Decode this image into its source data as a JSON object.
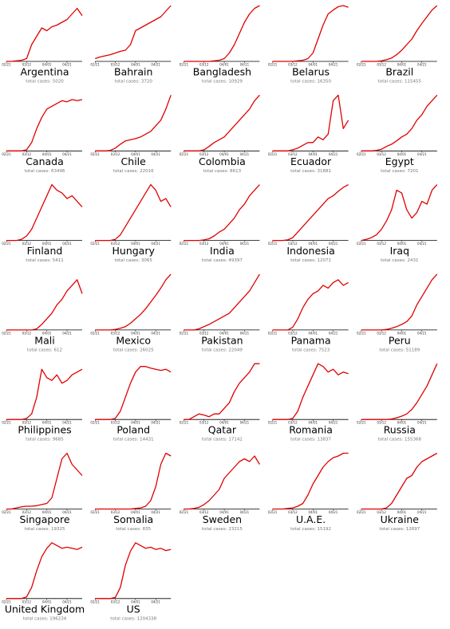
{
  "chart_data": {
    "type": "line",
    "color": "#e00000",
    "x": [
      0,
      5,
      10,
      15,
      20,
      25,
      30,
      35,
      40,
      45,
      50,
      55,
      60,
      65,
      70,
      75
    ],
    "xlim": [
      0,
      75
    ],
    "ylim": [
      0,
      100
    ],
    "xticks": [
      {
        "value": 0,
        "label": "02/21"
      },
      {
        "value": 20,
        "label": "03/12"
      },
      {
        "value": 40,
        "label": "04/01"
      },
      {
        "value": 60,
        "label": "04/21"
      }
    ],
    "series": [
      {
        "name": "Argentina",
        "subtitle": "total cases: 5020",
        "values": [
          0,
          0,
          1,
          2,
          5,
          30,
          45,
          60,
          55,
          62,
          65,
          70,
          75,
          85,
          95,
          82
        ]
      },
      {
        "name": "Bahrain",
        "subtitle": "total cases: 3720",
        "values": [
          5,
          8,
          10,
          12,
          15,
          18,
          20,
          30,
          55,
          60,
          65,
          70,
          75,
          80,
          90,
          100
        ]
      },
      {
        "name": "Bangladesh",
        "subtitle": "total cases: 10929",
        "values": [
          0,
          0,
          0,
          0,
          0,
          0,
          1,
          2,
          5,
          15,
          30,
          50,
          70,
          85,
          95,
          100
        ]
      },
      {
        "name": "Belarus",
        "subtitle": "total cases: 16350",
        "values": [
          0,
          0,
          0,
          0,
          0,
          1,
          2,
          5,
          15,
          40,
          65,
          85,
          92,
          98,
          100,
          97
        ]
      },
      {
        "name": "Brazil",
        "subtitle": "total cases: 115455",
        "values": [
          0,
          0,
          0,
          0,
          1,
          3,
          6,
          12,
          20,
          30,
          40,
          55,
          68,
          80,
          92,
          100
        ]
      },
      {
        "name": "Canada",
        "subtitle": "total cases: 63496",
        "values": [
          0,
          0,
          0,
          0,
          2,
          15,
          40,
          60,
          75,
          80,
          85,
          90,
          88,
          92,
          90,
          92
        ]
      },
      {
        "name": "Chile",
        "subtitle": "total cases: 22016",
        "values": [
          0,
          0,
          0,
          1,
          5,
          12,
          18,
          20,
          22,
          25,
          30,
          35,
          45,
          55,
          75,
          100
        ]
      },
      {
        "name": "Colombia",
        "subtitle": "total cases: 8613",
        "values": [
          0,
          0,
          0,
          0,
          2,
          8,
          15,
          20,
          25,
          35,
          45,
          55,
          65,
          75,
          90,
          100
        ]
      },
      {
        "name": "Ecuador",
        "subtitle": "total cases: 31881",
        "values": [
          0,
          0,
          0,
          0,
          2,
          5,
          10,
          15,
          15,
          25,
          20,
          30,
          90,
          100,
          40,
          55
        ]
      },
      {
        "name": "Egypt",
        "subtitle": "total cases: 7201",
        "values": [
          0,
          0,
          0,
          1,
          3,
          8,
          12,
          18,
          25,
          30,
          40,
          55,
          65,
          80,
          90,
          100
        ]
      },
      {
        "name": "Finland",
        "subtitle": "total cases: 5411",
        "values": [
          0,
          0,
          0,
          2,
          8,
          20,
          40,
          60,
          80,
          100,
          90,
          85,
          75,
          80,
          70,
          60
        ]
      },
      {
        "name": "Hungary",
        "subtitle": "total cases: 3065",
        "values": [
          0,
          0,
          0,
          0,
          2,
          10,
          25,
          40,
          55,
          70,
          85,
          100,
          90,
          70,
          75,
          60
        ]
      },
      {
        "name": "India",
        "subtitle": "total cases: 49397",
        "values": [
          0,
          0,
          0,
          0,
          1,
          3,
          8,
          15,
          20,
          30,
          40,
          55,
          65,
          80,
          90,
          100
        ]
      },
      {
        "name": "Indonesia",
        "subtitle": "total cases: 12071",
        "values": [
          0,
          0,
          0,
          1,
          5,
          15,
          25,
          35,
          45,
          55,
          65,
          75,
          80,
          88,
          95,
          100
        ]
      },
      {
        "name": "Iraq",
        "subtitle": "total cases: 2431",
        "values": [
          0,
          2,
          5,
          10,
          20,
          35,
          55,
          90,
          85,
          55,
          40,
          50,
          70,
          65,
          90,
          100
        ]
      },
      {
        "name": "Mali",
        "subtitle": "total cases: 612",
        "values": [
          0,
          0,
          0,
          0,
          0,
          0,
          2,
          10,
          20,
          30,
          45,
          55,
          70,
          80,
          90,
          65
        ]
      },
      {
        "name": "Mexico",
        "subtitle": "total cases: 26025",
        "values": [
          0,
          0,
          0,
          0,
          1,
          3,
          6,
          12,
          20,
          28,
          38,
          50,
          62,
          75,
          90,
          100
        ]
      },
      {
        "name": "Pakistan",
        "subtitle": "total cases: 22049",
        "values": [
          0,
          0,
          0,
          2,
          6,
          10,
          15,
          20,
          25,
          30,
          40,
          50,
          60,
          70,
          85,
          100
        ]
      },
      {
        "name": "Panama",
        "subtitle": "total cases: 7523",
        "values": [
          0,
          0,
          0,
          0,
          5,
          20,
          40,
          55,
          65,
          70,
          80,
          75,
          85,
          90,
          80,
          85
        ]
      },
      {
        "name": "Peru",
        "subtitle": "total cases: 51189",
        "values": [
          0,
          0,
          0,
          0,
          0,
          1,
          3,
          6,
          10,
          15,
          25,
          45,
          60,
          75,
          90,
          100
        ]
      },
      {
        "name": "Philippines",
        "subtitle": "total cases: 9685",
        "values": [
          0,
          0,
          0,
          0,
          2,
          10,
          40,
          90,
          75,
          70,
          80,
          65,
          70,
          80,
          85,
          90
        ]
      },
      {
        "name": "Poland",
        "subtitle": "total cases: 14431",
        "values": [
          0,
          0,
          0,
          0,
          2,
          15,
          40,
          65,
          85,
          95,
          95,
          92,
          90,
          88,
          90,
          85
        ]
      },
      {
        "name": "Qatar",
        "subtitle": "total cases: 17142",
        "values": [
          0,
          0,
          5,
          10,
          8,
          5,
          10,
          10,
          20,
          30,
          50,
          65,
          75,
          85,
          100,
          100
        ]
      },
      {
        "name": "Romania",
        "subtitle": "total cases: 13837",
        "values": [
          0,
          0,
          0,
          0,
          2,
          15,
          40,
          60,
          80,
          100,
          95,
          85,
          90,
          80,
          85,
          82
        ]
      },
      {
        "name": "Russia",
        "subtitle": "total cases: 155368",
        "values": [
          0,
          0,
          0,
          0,
          0,
          0,
          1,
          3,
          6,
          10,
          18,
          30,
          45,
          60,
          80,
          100
        ]
      },
      {
        "name": "Singapore",
        "subtitle": "total cases: 19325",
        "values": [
          0,
          0,
          2,
          4,
          5,
          5,
          6,
          8,
          10,
          20,
          55,
          90,
          100,
          80,
          70,
          60
        ]
      },
      {
        "name": "Somalia",
        "subtitle": "total cases: 835",
        "values": [
          0,
          0,
          0,
          0,
          0,
          0,
          0,
          0,
          1,
          2,
          5,
          15,
          40,
          80,
          100,
          95
        ]
      },
      {
        "name": "Sweden",
        "subtitle": "total cases: 23215",
        "values": [
          0,
          0,
          1,
          3,
          8,
          15,
          25,
          35,
          55,
          65,
          75,
          85,
          90,
          85,
          95,
          80
        ]
      },
      {
        "name": "U.A.E.",
        "subtitle": "total cases: 15192",
        "values": [
          0,
          0,
          0,
          1,
          2,
          5,
          10,
          25,
          45,
          60,
          75,
          85,
          92,
          95,
          100,
          100
        ]
      },
      {
        "name": "Ukraine",
        "subtitle": "total cases: 12697",
        "values": [
          0,
          0,
          0,
          0,
          0,
          2,
          10,
          25,
          40,
          55,
          60,
          75,
          85,
          90,
          95,
          100
        ]
      },
      {
        "name": "United Kingdom",
        "subtitle": "total cases: 196234",
        "values": [
          0,
          0,
          0,
          0,
          3,
          20,
          50,
          75,
          90,
          100,
          95,
          90,
          92,
          90,
          88,
          92
        ]
      },
      {
        "name": "US",
        "subtitle": "total cases: 1204338",
        "values": [
          0,
          0,
          0,
          0,
          2,
          20,
          60,
          85,
          100,
          95,
          90,
          92,
          88,
          90,
          86,
          88
        ]
      }
    ]
  }
}
